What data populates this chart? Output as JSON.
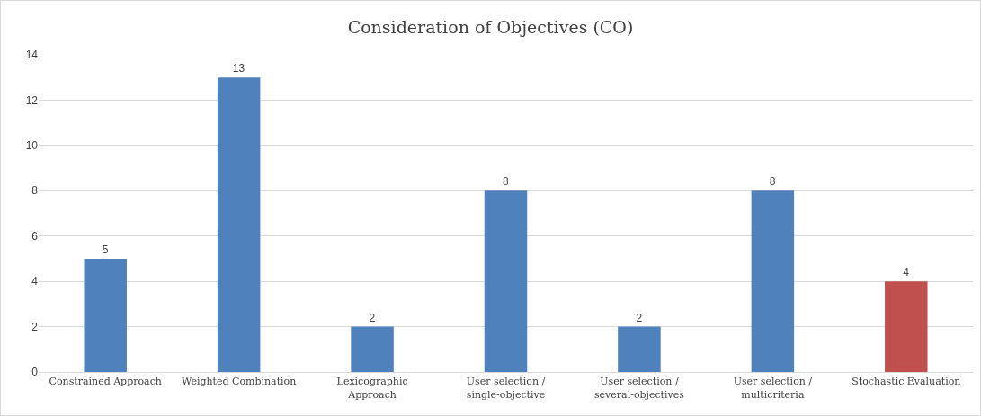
{
  "chart_data": {
    "type": "bar",
    "title": "Consideration of Objectives (CO)",
    "categories": [
      "Constrained Approach",
      "Weighted Combination",
      "Lexicographic Approach",
      "User selection / single-objective",
      "User selection / several-objectives",
      "User selection / multicriteria",
      "Stochastic Evaluation"
    ],
    "values": [
      5,
      13,
      2,
      8,
      2,
      8,
      4
    ],
    "colors": [
      "#4f81bd",
      "#4f81bd",
      "#4f81bd",
      "#4f81bd",
      "#4f81bd",
      "#4f81bd",
      "#c0504d"
    ],
    "ylim": [
      0,
      14
    ],
    "yticks": [
      0,
      2,
      4,
      6,
      8,
      10,
      12,
      14
    ],
    "grid": "y",
    "data_labels": true
  }
}
